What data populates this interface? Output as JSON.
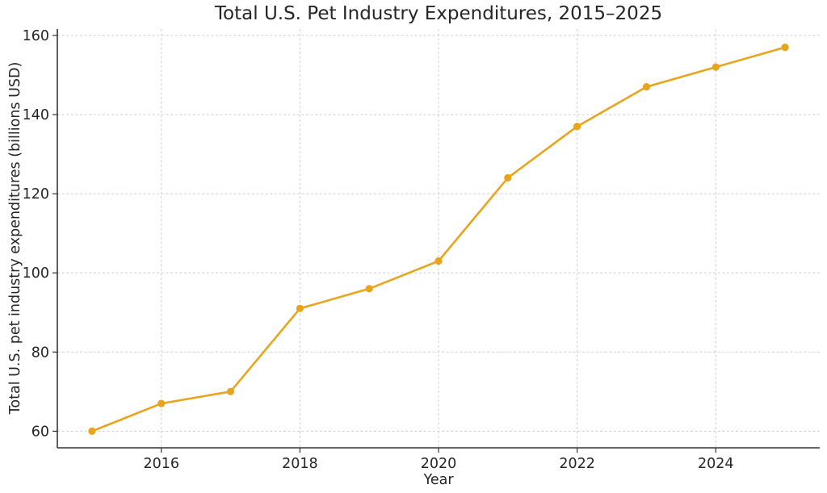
{
  "chart_data": {
    "type": "line",
    "title": "Total U.S. Pet Industry Expenditures, 2015–2025",
    "xlabel": "Year",
    "ylabel": "Total U.S. pet industry expenditures (billions USD)",
    "x": [
      2015,
      2016,
      2017,
      2018,
      2019,
      2020,
      2021,
      2022,
      2023,
      2024,
      2025
    ],
    "values": [
      60,
      67,
      70,
      91,
      96,
      103,
      124,
      137,
      147,
      152,
      157
    ],
    "xticks": [
      2016,
      2018,
      2020,
      2022,
      2024
    ],
    "yticks": [
      60,
      80,
      100,
      120,
      140,
      160
    ],
    "xlim": [
      2014.5,
      2025.5
    ],
    "ylim": [
      55.8,
      161.6
    ],
    "grid": true,
    "grid_style": "dashed",
    "legend": "none",
    "marker": "circle",
    "colors": {
      "line": "#E9A41E",
      "grid": "#cfcfcf",
      "spine": "#333333",
      "text": "#262626",
      "background": "#ffffff"
    }
  }
}
